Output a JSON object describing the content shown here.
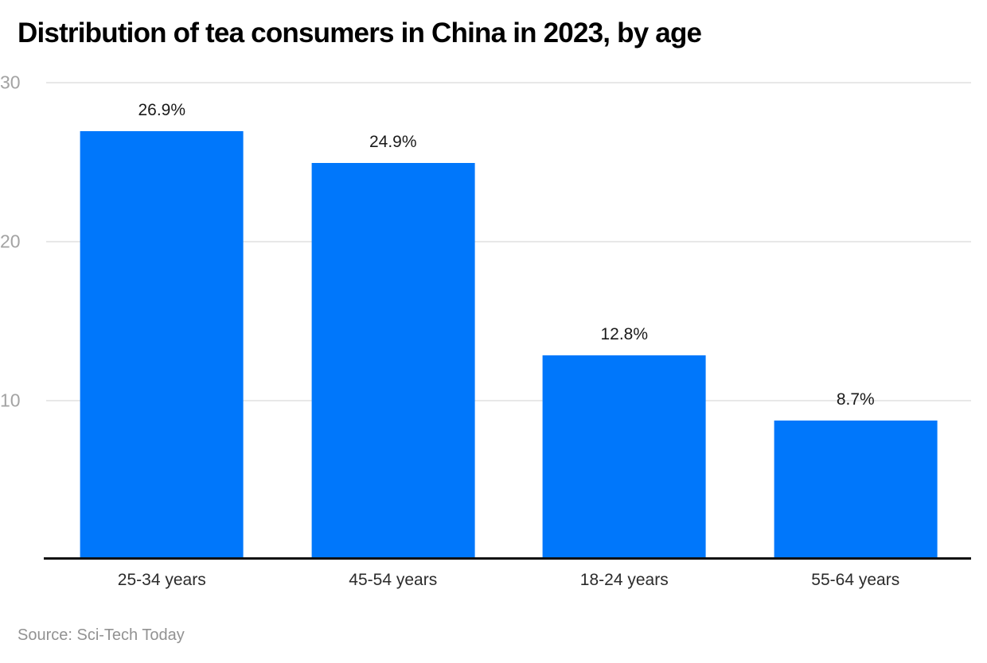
{
  "chart_data": {
    "type": "bar",
    "title": "Distribution of tea consumers in China in 2023, by age",
    "categories": [
      "25-34 years",
      "45-54 years",
      "18-24 years",
      "55-64 years"
    ],
    "values": [
      26.9,
      24.9,
      12.8,
      8.7
    ],
    "value_labels": [
      "26.9%",
      "24.9%",
      "12.8%",
      "8.7%"
    ],
    "xlabel": "",
    "ylabel": "",
    "ylim": [
      0,
      30
    ],
    "yticks": [
      10,
      20,
      30
    ],
    "grid": true,
    "legend": false,
    "bar_color": "#0077fb",
    "gridline_color": "#e8e8e8",
    "axis_line_color": "#111111",
    "tick_label_color": "#a3a3a3"
  },
  "source": {
    "text": "Source: Sci-Tech Today"
  }
}
